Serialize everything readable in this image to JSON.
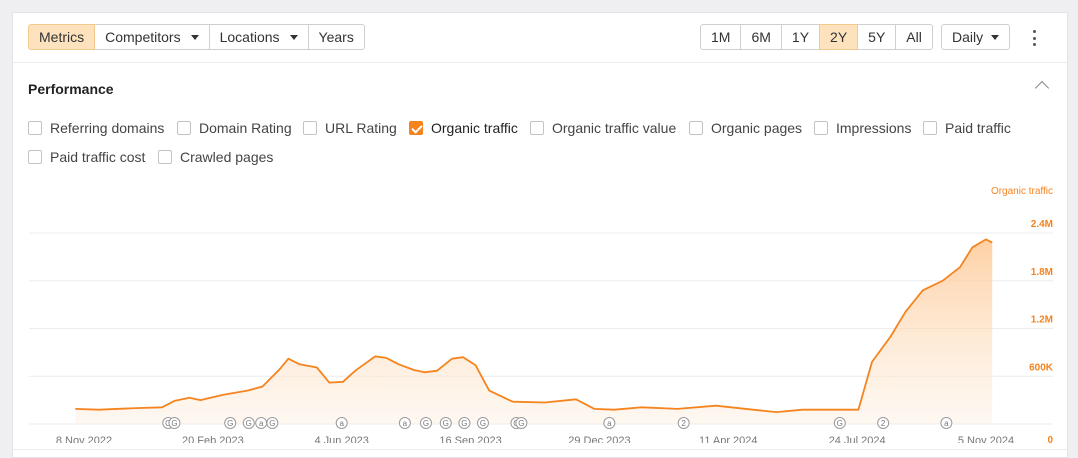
{
  "toolbar": {
    "left_tabs": [
      {
        "label": "Metrics",
        "active": true,
        "dropdown": false
      },
      {
        "label": "Competitors",
        "active": false,
        "dropdown": true
      },
      {
        "label": "Locations",
        "active": false,
        "dropdown": true
      },
      {
        "label": "Years",
        "active": false,
        "dropdown": false
      }
    ],
    "ranges": [
      {
        "label": "1M",
        "active": false
      },
      {
        "label": "6M",
        "active": false
      },
      {
        "label": "1Y",
        "active": false
      },
      {
        "label": "2Y",
        "active": true
      },
      {
        "label": "5Y",
        "active": false
      },
      {
        "label": "All",
        "active": false
      }
    ],
    "granularity": "Daily",
    "more_icon": "kebab-icon"
  },
  "section": {
    "title": "Performance",
    "collapse_icon": "chevron-up-icon"
  },
  "metrics": [
    {
      "label": "Referring domains",
      "checked": false
    },
    {
      "label": "Domain Rating",
      "checked": false
    },
    {
      "label": "URL Rating",
      "checked": false
    },
    {
      "label": "Organic traffic",
      "checked": true
    },
    {
      "label": "Organic traffic value",
      "checked": false
    },
    {
      "label": "Organic pages",
      "checked": false
    },
    {
      "label": "Impressions",
      "checked": false
    },
    {
      "label": "Paid traffic",
      "checked": false
    },
    {
      "label": "Paid traffic cost",
      "checked": false
    },
    {
      "label": "Crawled pages",
      "checked": false
    }
  ],
  "colors": {
    "accent": "#f5841f",
    "fill": "#fdd9b3",
    "grid": "#ececef",
    "axis_label": "#f5841f"
  },
  "chart_data": {
    "type": "area",
    "series": [
      {
        "name": "Organic traffic",
        "x": [
          "2022-11-01",
          "2022-11-20",
          "2022-12-20",
          "2023-01-10",
          "2023-01-20",
          "2023-02-01",
          "2023-02-10",
          "2023-03-01",
          "2023-03-20",
          "2023-04-01",
          "2023-04-15",
          "2023-04-22",
          "2023-05-01",
          "2023-05-15",
          "2023-05-25",
          "2023-06-05",
          "2023-06-15",
          "2023-07-01",
          "2023-07-10",
          "2023-07-20",
          "2023-08-01",
          "2023-08-10",
          "2023-08-20",
          "2023-09-01",
          "2023-09-10",
          "2023-09-20",
          "2023-10-01",
          "2023-10-20",
          "2023-11-15",
          "2023-12-10",
          "2023-12-25",
          "2024-01-10",
          "2024-02-01",
          "2024-03-01",
          "2024-04-01",
          "2024-05-01",
          "2024-05-20",
          "2024-06-10",
          "2024-07-01",
          "2024-07-25",
          "2024-08-05",
          "2024-08-20",
          "2024-09-01",
          "2024-09-15",
          "2024-10-01",
          "2024-10-15",
          "2024-10-25",
          "2024-11-05",
          "2024-11-10"
        ],
        "values": [
          190000,
          180000,
          200000,
          210000,
          290000,
          330000,
          300000,
          370000,
          420000,
          470000,
          690000,
          820000,
          750000,
          710000,
          520000,
          530000,
          670000,
          850000,
          830000,
          750000,
          680000,
          650000,
          670000,
          820000,
          840000,
          740000,
          420000,
          280000,
          270000,
          310000,
          190000,
          180000,
          210000,
          190000,
          230000,
          180000,
          150000,
          180000,
          180000,
          180000,
          780000,
          1100000,
          1410000,
          1680000,
          1800000,
          1970000,
          2220000,
          2320000,
          2280000
        ]
      }
    ],
    "x_ticks": [
      "8 Nov 2022",
      "20 Feb 2023",
      "4 Jun 2023",
      "16 Sep 2023",
      "29 Dec 2023",
      "11 Apr 2024",
      "24 Jul 2024",
      "5 Nov 2024"
    ],
    "y_ticks": [
      "0",
      "600K",
      "1.2M",
      "1.8M",
      "2.4M"
    ],
    "y_tick_values": [
      0,
      600000,
      1200000,
      1800000,
      2400000
    ],
    "ylim": [
      0,
      2400000
    ],
    "ylabel": "Organic traffic",
    "annotations": [
      {
        "date": "2023-01-15",
        "label": "G"
      },
      {
        "date": "2023-01-20",
        "label": "G"
      },
      {
        "date": "2023-03-06",
        "label": "G"
      },
      {
        "date": "2023-03-21",
        "label": "G"
      },
      {
        "date": "2023-03-31",
        "label": "a"
      },
      {
        "date": "2023-04-09",
        "label": "G"
      },
      {
        "date": "2023-06-04",
        "label": "a"
      },
      {
        "date": "2023-07-25",
        "label": "a"
      },
      {
        "date": "2023-08-11",
        "label": "G"
      },
      {
        "date": "2023-08-27",
        "label": "G"
      },
      {
        "date": "2023-09-11",
        "label": "G"
      },
      {
        "date": "2023-09-26",
        "label": "G"
      },
      {
        "date": "2023-10-23",
        "label": "G"
      },
      {
        "date": "2023-10-27",
        "label": "G"
      },
      {
        "date": "2024-01-06",
        "label": "a"
      },
      {
        "date": "2024-03-06",
        "label": "2"
      },
      {
        "date": "2024-07-10",
        "label": "G"
      },
      {
        "date": "2024-08-14",
        "label": "2"
      },
      {
        "date": "2024-10-04",
        "label": "a"
      }
    ],
    "grid": true
  }
}
